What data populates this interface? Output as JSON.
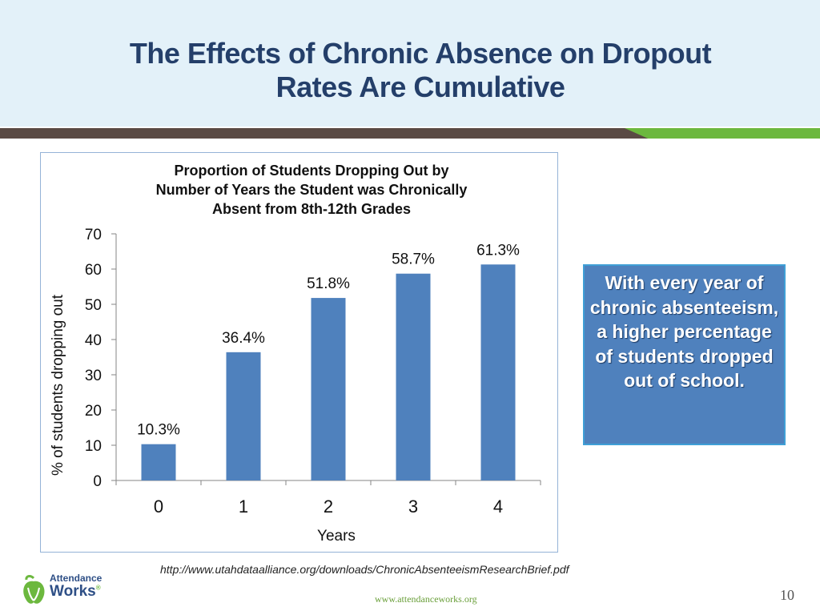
{
  "slide": {
    "title_line1": "The Effects of Chronic Absence on Dropout",
    "title_line2": "Rates Are Cumulative",
    "callout_text": "With every year of chronic absenteeism, a higher percentage of students dropped out of school.",
    "source_url": "http://www.utahdataalliance.org/downloads/ChronicAbsenteeismResearchBrief.pdf",
    "website": "www.attendanceworks.org",
    "page_number": "10",
    "logo": {
      "line1": "Attendance",
      "line2": "Works",
      "mark": "®"
    }
  },
  "colors": {
    "bar": "#4f81bd",
    "title": "#243f6a",
    "header_bg": "#e3f1f9",
    "band_dark": "#5a4a44",
    "band_green": "#6cb83e"
  },
  "chart_data": {
    "type": "bar",
    "title_lines": [
      "Proportion of Students Dropping Out by",
      "Number of Years the Student was Chronically",
      "Absent from 8th-12th Grades"
    ],
    "categories": [
      "0",
      "1",
      "2",
      "3",
      "4"
    ],
    "values": [
      10.3,
      36.4,
      51.8,
      58.7,
      61.3
    ],
    "data_labels": [
      "10.3%",
      "36.4%",
      "51.8%",
      "58.7%",
      "61.3%"
    ],
    "xlabel": "Years",
    "ylabel": "% of students dropping out",
    "ylim": [
      0,
      70
    ],
    "yticks": [
      0,
      10,
      20,
      30,
      40,
      50,
      60,
      70
    ],
    "grid": false,
    "legend": "none"
  }
}
